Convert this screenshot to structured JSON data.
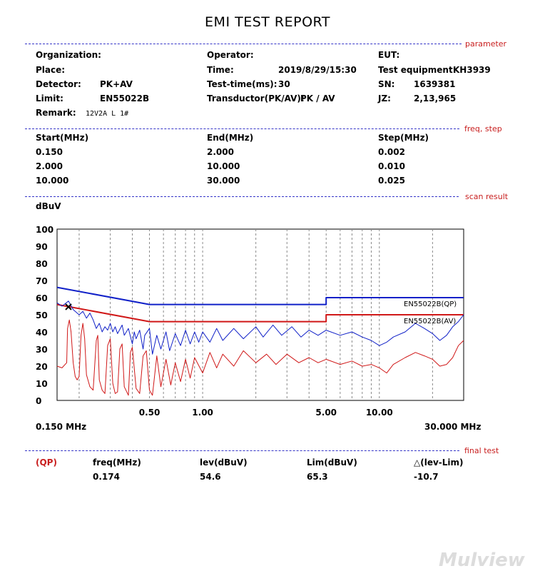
{
  "report": {
    "title": "EMI TEST REPORT",
    "watermark": "Mulview"
  },
  "sections": {
    "parameter": "parameter",
    "freq_step": "freq, step",
    "scan_result": "scan result",
    "final_test": "final test"
  },
  "parameters": {
    "organization_label": "Organization:",
    "organization_value": "",
    "operator_label": "Operator:",
    "operator_value": "",
    "eut_label": "EUT:",
    "eut_value": "",
    "place_label": "Place:",
    "place_value": "",
    "time_label": "Time:",
    "time_value": "2019/8/29/15:30",
    "test_equipment_label": "Test equipment:",
    "test_equipment_value": "KH3939",
    "detector_label": "Detector:",
    "detector_value": "PK+AV",
    "test_time_label": "Test-time(ms):",
    "test_time_value": "30",
    "sn_label": "SN:",
    "sn_value": "1639381",
    "limit_label": "Limit:",
    "limit_value": "EN55022B",
    "transductor_label": "Transductor(PK/AV):",
    "transductor_value": "PK / AV",
    "jz_label": "JZ:",
    "jz_value": "2,13,965",
    "remark_label": "Remark:",
    "remark_value": "12V2A L 1#"
  },
  "freq_table": {
    "headers": [
      "Start(MHz)",
      "End(MHz)",
      "Step(MHz)"
    ],
    "rows": [
      [
        "0.150",
        "2.000",
        "0.002"
      ],
      [
        "2.000",
        "10.000",
        "0.010"
      ],
      [
        "10.000",
        "30.000",
        "0.025"
      ]
    ]
  },
  "chart_data": {
    "type": "line",
    "ylabel": "dBuV",
    "x_scale": "log",
    "xlim": [
      0.15,
      30
    ],
    "ylim": [
      0,
      100
    ],
    "y_ticks": [
      0,
      10,
      20,
      30,
      40,
      50,
      60,
      70,
      80,
      90,
      100
    ],
    "x_tick_labels": [
      {
        "x": 0.5,
        "label": "0.50"
      },
      {
        "x": 1,
        "label": "1.00"
      },
      {
        "x": 5,
        "label": "5.00"
      },
      {
        "x": 10,
        "label": "10.00"
      }
    ],
    "x_start_label": "0.150 MHz",
    "x_end_label": "30.000 MHz",
    "grid": true,
    "series": [
      {
        "name": "EN55022B(QP)",
        "role": "limit",
        "color": "#1020c8",
        "points": [
          [
            0.15,
            66
          ],
          [
            0.5,
            56
          ],
          [
            5,
            56
          ],
          [
            5,
            60
          ],
          [
            30,
            60
          ]
        ]
      },
      {
        "name": "EN55022B(AV)",
        "role": "limit",
        "color": "#d01818",
        "points": [
          [
            0.15,
            56
          ],
          [
            0.5,
            46
          ],
          [
            5,
            46
          ],
          [
            5,
            50
          ],
          [
            30,
            50
          ]
        ]
      },
      {
        "role": "measurement-pk",
        "color": "#1020c8",
        "points": [
          [
            0.15,
            57
          ],
          [
            0.16,
            55
          ],
          [
            0.174,
            58
          ],
          [
            0.185,
            53
          ],
          [
            0.2,
            50
          ],
          [
            0.21,
            52
          ],
          [
            0.22,
            48
          ],
          [
            0.23,
            51
          ],
          [
            0.24,
            47
          ],
          [
            0.25,
            42
          ],
          [
            0.26,
            45
          ],
          [
            0.27,
            40
          ],
          [
            0.28,
            43
          ],
          [
            0.29,
            41
          ],
          [
            0.3,
            45
          ],
          [
            0.31,
            40
          ],
          [
            0.32,
            43
          ],
          [
            0.33,
            39
          ],
          [
            0.35,
            44
          ],
          [
            0.36,
            38
          ],
          [
            0.38,
            42
          ],
          [
            0.4,
            33
          ],
          [
            0.41,
            40
          ],
          [
            0.42,
            36
          ],
          [
            0.44,
            41
          ],
          [
            0.46,
            30
          ],
          [
            0.47,
            38
          ],
          [
            0.5,
            42
          ],
          [
            0.52,
            27
          ],
          [
            0.55,
            38
          ],
          [
            0.58,
            30
          ],
          [
            0.62,
            40
          ],
          [
            0.65,
            29
          ],
          [
            0.7,
            39
          ],
          [
            0.75,
            32
          ],
          [
            0.8,
            41
          ],
          [
            0.85,
            33
          ],
          [
            0.9,
            40
          ],
          [
            0.95,
            34
          ],
          [
            1.0,
            40
          ],
          [
            1.1,
            34
          ],
          [
            1.2,
            42
          ],
          [
            1.3,
            35
          ],
          [
            1.5,
            42
          ],
          [
            1.7,
            36
          ],
          [
            2.0,
            43
          ],
          [
            2.2,
            37
          ],
          [
            2.5,
            44
          ],
          [
            2.8,
            38
          ],
          [
            3.2,
            43
          ],
          [
            3.6,
            37
          ],
          [
            4.0,
            41
          ],
          [
            4.5,
            38
          ],
          [
            5.0,
            41
          ],
          [
            6.0,
            38
          ],
          [
            7.0,
            40
          ],
          [
            8.0,
            37
          ],
          [
            9.0,
            35
          ],
          [
            10.0,
            32
          ],
          [
            11.0,
            34
          ],
          [
            12.0,
            37
          ],
          [
            14.0,
            40
          ],
          [
            16.0,
            45
          ],
          [
            18.0,
            42
          ],
          [
            20.0,
            39
          ],
          [
            22.0,
            35
          ],
          [
            24.0,
            38
          ],
          [
            26.0,
            43
          ],
          [
            28.0,
            46
          ],
          [
            30.0,
            50
          ]
        ]
      },
      {
        "role": "measurement-av",
        "color": "#d01818",
        "points": [
          [
            0.15,
            20
          ],
          [
            0.16,
            19
          ],
          [
            0.17,
            22
          ],
          [
            0.172,
            42
          ],
          [
            0.176,
            47
          ],
          [
            0.18,
            40
          ],
          [
            0.185,
            22
          ],
          [
            0.19,
            14
          ],
          [
            0.195,
            12
          ],
          [
            0.2,
            14
          ],
          [
            0.205,
            38
          ],
          [
            0.21,
            45
          ],
          [
            0.215,
            36
          ],
          [
            0.22,
            15
          ],
          [
            0.23,
            8
          ],
          [
            0.24,
            6
          ],
          [
            0.25,
            35
          ],
          [
            0.255,
            38
          ],
          [
            0.26,
            12
          ],
          [
            0.27,
            6
          ],
          [
            0.28,
            4
          ],
          [
            0.29,
            32
          ],
          [
            0.3,
            36
          ],
          [
            0.31,
            10
          ],
          [
            0.32,
            4
          ],
          [
            0.33,
            5
          ],
          [
            0.34,
            30
          ],
          [
            0.35,
            33
          ],
          [
            0.36,
            8
          ],
          [
            0.38,
            3
          ],
          [
            0.39,
            28
          ],
          [
            0.4,
            31
          ],
          [
            0.42,
            7
          ],
          [
            0.44,
            4
          ],
          [
            0.46,
            26
          ],
          [
            0.48,
            29
          ],
          [
            0.5,
            6
          ],
          [
            0.52,
            3
          ],
          [
            0.55,
            26
          ],
          [
            0.58,
            8
          ],
          [
            0.62,
            24
          ],
          [
            0.66,
            9
          ],
          [
            0.7,
            22
          ],
          [
            0.75,
            11
          ],
          [
            0.8,
            24
          ],
          [
            0.85,
            13
          ],
          [
            0.9,
            25
          ],
          [
            1.0,
            16
          ],
          [
            1.1,
            28
          ],
          [
            1.2,
            19
          ],
          [
            1.3,
            27
          ],
          [
            1.5,
            20
          ],
          [
            1.7,
            29
          ],
          [
            2.0,
            22
          ],
          [
            2.3,
            27
          ],
          [
            2.6,
            21
          ],
          [
            3.0,
            27
          ],
          [
            3.5,
            22
          ],
          [
            4.0,
            25
          ],
          [
            4.5,
            22
          ],
          [
            5.0,
            24
          ],
          [
            6.0,
            21
          ],
          [
            7.0,
            23
          ],
          [
            8.0,
            20
          ],
          [
            9.0,
            21
          ],
          [
            10.0,
            19
          ],
          [
            11.0,
            16
          ],
          [
            12.0,
            21
          ],
          [
            14.0,
            25
          ],
          [
            16.0,
            28
          ],
          [
            18.0,
            26
          ],
          [
            20.0,
            24
          ],
          [
            22.0,
            20
          ],
          [
            24.0,
            21
          ],
          [
            26.0,
            25
          ],
          [
            28.0,
            32
          ],
          [
            30.0,
            35
          ]
        ]
      }
    ],
    "marker": {
      "x": 0.174,
      "y": 54.6,
      "symbol": "x"
    }
  },
  "final_test": {
    "headers": [
      "(QP)",
      "freq(MHz)",
      "lev(dBuV)",
      "Lim(dBuV)",
      "△(lev-Lim)"
    ],
    "row": [
      "0.174",
      "54.6",
      "65.3",
      "-10.7"
    ]
  }
}
